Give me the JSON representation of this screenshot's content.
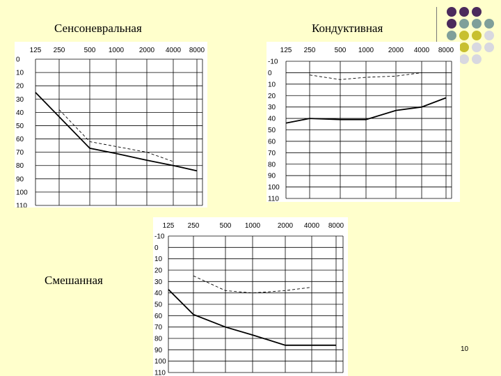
{
  "titles": {
    "sensorineural": "Сенсоневральная",
    "conductive": "Кондуктивная",
    "mixed": "Смешанная"
  },
  "slide_number": "10",
  "decor": {
    "dot_colors": [
      "#4b2a5c",
      "#7f9f9a",
      "#c8c030",
      "#d8d8e0"
    ]
  },
  "chart_data": [
    {
      "id": "sensorineural",
      "type": "line",
      "x_ticks": [
        "125",
        "250",
        "500",
        "1000",
        "2000",
        "4000",
        "8000"
      ],
      "y_ticks": [
        "0",
        "10",
        "20",
        "30",
        "40",
        "50",
        "60",
        "70",
        "80",
        "90",
        "100",
        "110"
      ],
      "ylim": [
        0,
        110
      ],
      "y_inverted": true,
      "grid": true,
      "series": [
        {
          "style": "solid",
          "points": [
            [
              125,
              25
            ],
            [
              500,
              67
            ],
            [
              1000,
              71
            ],
            [
              2000,
              76
            ],
            [
              4000,
              80
            ],
            [
              8000,
              84
            ]
          ]
        },
        {
          "style": "dashed",
          "points": [
            [
              250,
              38
            ],
            [
              500,
              62
            ],
            [
              2000,
              70
            ],
            [
              4000,
              77
            ]
          ]
        }
      ]
    },
    {
      "id": "conductive",
      "type": "line",
      "x_ticks": [
        "125",
        "250",
        "500",
        "1000",
        "2000",
        "4000",
        "8000"
      ],
      "y_ticks": [
        "-10",
        "0",
        "10",
        "20",
        "30",
        "40",
        "50",
        "60",
        "70",
        "80",
        "90",
        "100",
        "110"
      ],
      "ylim": [
        -10,
        110
      ],
      "y_inverted": true,
      "grid": true,
      "series": [
        {
          "style": "solid",
          "points": [
            [
              125,
              44
            ],
            [
              250,
              40
            ],
            [
              500,
              41
            ],
            [
              1000,
              41
            ],
            [
              2000,
              33
            ],
            [
              4000,
              30
            ],
            [
              8000,
              22
            ]
          ]
        },
        {
          "style": "dashed",
          "points": [
            [
              250,
              2
            ],
            [
              500,
              6
            ],
            [
              1000,
              4
            ],
            [
              2000,
              3
            ],
            [
              4000,
              0
            ]
          ]
        }
      ]
    },
    {
      "id": "mixed",
      "type": "line",
      "x_ticks": [
        "125",
        "250",
        "500",
        "1000",
        "2000",
        "4000",
        "8000"
      ],
      "y_ticks": [
        "-10",
        "0",
        "10",
        "20",
        "30",
        "40",
        "50",
        "60",
        "70",
        "80",
        "90",
        "100",
        "110"
      ],
      "ylim": [
        -10,
        110
      ],
      "y_inverted": true,
      "grid": true,
      "series": [
        {
          "style": "solid",
          "points": [
            [
              125,
              37
            ],
            [
              250,
              59
            ],
            [
              500,
              70
            ],
            [
              1000,
              77
            ],
            [
              2000,
              86
            ],
            [
              8000,
              86
            ]
          ]
        },
        {
          "style": "dashed",
          "points": [
            [
              250,
              25
            ],
            [
              500,
              38
            ],
            [
              1000,
              40
            ],
            [
              2000,
              38
            ],
            [
              4000,
              35
            ]
          ]
        }
      ]
    }
  ]
}
